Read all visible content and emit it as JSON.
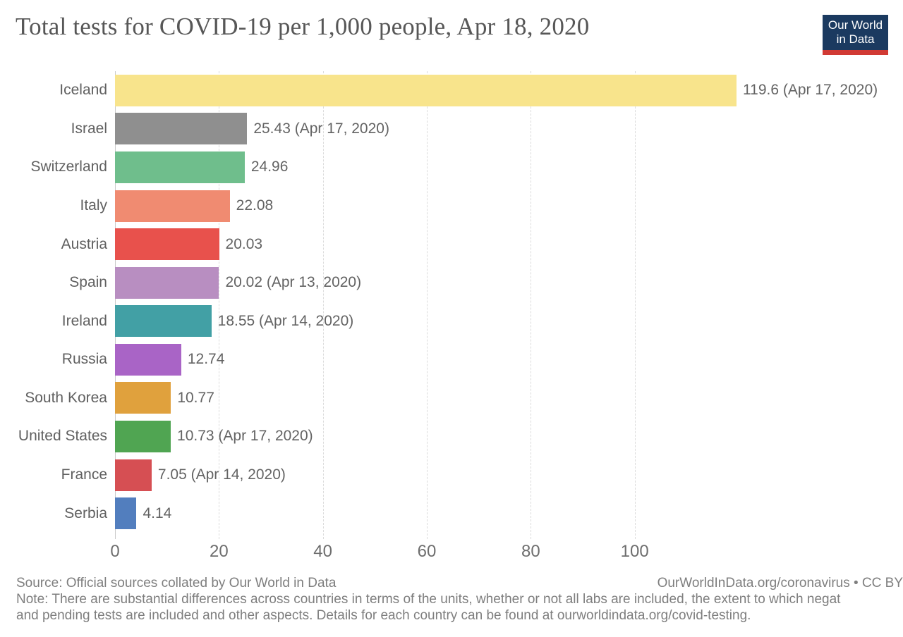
{
  "logo": {
    "line1": "Our World",
    "line2": "in Data",
    "bg_color": "#1b3a60",
    "accent_color": "#d13a34"
  },
  "chart_data": {
    "type": "bar",
    "orientation": "horizontal",
    "title": "Total tests for COVID-19 per 1,000 people, Apr 18, 2020",
    "categories": [
      "Iceland",
      "Israel",
      "Switzerland",
      "Italy",
      "Austria",
      "Spain",
      "Ireland",
      "Russia",
      "South Korea",
      "United States",
      "France",
      "Serbia"
    ],
    "values": [
      119.6,
      25.43,
      24.96,
      22.08,
      20.03,
      20.02,
      18.55,
      12.74,
      10.77,
      10.73,
      7.05,
      4.14
    ],
    "value_labels": [
      "119.6 (Apr 17, 2020)",
      "25.43 (Apr 17, 2020)",
      "24.96",
      "22.08",
      "20.03",
      "20.02 (Apr 13, 2020)",
      "18.55 (Apr 14, 2020)",
      "12.74",
      "10.77",
      "10.73 (Apr 17, 2020)",
      "7.05 (Apr 14, 2020)",
      "4.14"
    ],
    "bar_colors": [
      "#f8e48c",
      "#8f8f8f",
      "#6fbe8c",
      "#f08b71",
      "#e8514c",
      "#b88ec1",
      "#42a0a5",
      "#a964c6",
      "#e0a13d",
      "#50a552",
      "#d64f53",
      "#527ebe"
    ],
    "xticks": [
      0,
      20,
      40,
      60,
      80,
      100
    ],
    "xlim": [
      0,
      120
    ],
    "xlabel": "",
    "ylabel": "",
    "grid": "vertical-dashed",
    "legend": "none"
  },
  "footer": {
    "source": "Source: Official sources collated by Our World in Data",
    "attribution": "OurWorldInData.org/coronavirus • CC BY",
    "note_line1": "Note: There are substantial differences across countries in terms of the units, whether or not all labs are included, the extent to which negat",
    "note_line2": "and pending tests are included and other aspects. Details for each country can be found at ourworldindata.org/covid-testing."
  }
}
